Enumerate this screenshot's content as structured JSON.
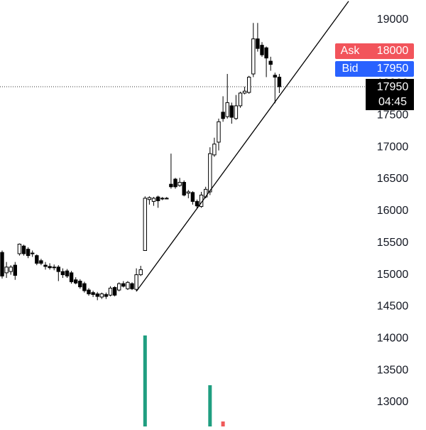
{
  "chart_data": {
    "type": "candlestick",
    "open": [
      15350,
      15030,
      15050,
      15150,
      15330,
      15450,
      15400,
      15340,
      15300,
      15220,
      15150,
      15130,
      15110,
      15120,
      15050,
      15060,
      15030,
      14920,
      14900,
      14860,
      14760,
      14720,
      14700,
      14650,
      14690,
      14680,
      14800,
      14760,
      14860,
      14780,
      14860,
      14770,
      15000,
      15380,
      16180,
      16150,
      16220,
      16190,
      16200,
      16420,
      16500,
      16400,
      16450,
      16280,
      16290,
      16150,
      16070,
      16220,
      16300,
      16880,
      17080,
      17550,
      17480,
      17650,
      17450,
      17650,
      17850,
      17860,
      18150,
      18700,
      18600,
      18560,
      18350,
      18130,
      18100
    ],
    "high": [
      15380,
      15200,
      15150,
      15200,
      15490,
      15470,
      15430,
      15380,
      15320,
      15250,
      15200,
      15180,
      15160,
      15150,
      15100,
      15090,
      15060,
      14960,
      14930,
      14890,
      14790,
      14750,
      14730,
      14720,
      14720,
      14820,
      14820,
      14880,
      14900,
      14900,
      14880,
      15100,
      15140,
      16230,
      16230,
      16220,
      16240,
      16220,
      16220,
      16900,
      16520,
      16520,
      16480,
      16330,
      16310,
      16180,
      16300,
      16380,
      17000,
      17150,
      17450,
      17800,
      18150,
      17700,
      17820,
      17870,
      17950,
      18120,
      18950,
      18950,
      18650,
      18580,
      18420,
      18170,
      18150
    ],
    "low": [
      14940,
      14950,
      15000,
      14920,
      15300,
      15300,
      15260,
      15280,
      15150,
      15150,
      15080,
      15080,
      15070,
      14900,
      14950,
      14950,
      14860,
      14850,
      14780,
      14720,
      14670,
      14650,
      14600,
      14620,
      14620,
      14660,
      14660,
      14740,
      14800,
      14760,
      14760,
      14740,
      14980,
      15380,
      16100,
      16080,
      16050,
      16170,
      16190,
      16350,
      16350,
      16380,
      16230,
      16200,
      16100,
      16030,
      16050,
      16200,
      16250,
      16850,
      16950,
      17400,
      17450,
      17370,
      17430,
      17620,
      17830,
      17840,
      18100,
      18500,
      18420,
      18100,
      18200,
      17690,
      17850
    ],
    "close": [
      14980,
      15120,
      15120,
      14990,
      15480,
      15330,
      15300,
      15330,
      15180,
      15180,
      15130,
      15110,
      15120,
      15050,
      15000,
      14980,
      14890,
      14870,
      14810,
      14750,
      14700,
      14690,
      14660,
      14700,
      14660,
      14790,
      14680,
      14860,
      14820,
      14880,
      14780,
      15000,
      15080,
      16200,
      16210,
      16200,
      16160,
      16200,
      16200,
      16380,
      16380,
      16450,
      16250,
      16300,
      16150,
      16080,
      16250,
      16340,
      16900,
      17050,
      17400,
      17450,
      17700,
      17470,
      17650,
      17850,
      17880,
      18100,
      18700,
      18550,
      18450,
      18400,
      18300,
      18100,
      17950
    ],
    "volume": [
      null,
      null,
      null,
      null,
      null,
      null,
      null,
      null,
      null,
      null,
      null,
      null,
      null,
      null,
      null,
      null,
      null,
      null,
      null,
      null,
      null,
      null,
      null,
      null,
      null,
      null,
      null,
      null,
      null,
      null,
      null,
      null,
      null,
      128,
      null,
      null,
      null,
      null,
      null,
      null,
      null,
      null,
      null,
      null,
      null,
      null,
      null,
      null,
      58,
      null,
      null,
      7,
      null,
      null,
      null,
      null,
      null,
      null,
      null,
      null,
      null,
      null,
      null,
      null,
      null
    ],
    "up_color": "#ffffff",
    "down_color": "#000000",
    "wick_color": "#000000",
    "volume_up_color": "#1f9e80",
    "volume_down_color": "#f05a5a",
    "ylim": [
      12620,
      19310
    ],
    "yticks": [
      13000,
      13500,
      14000,
      14500,
      15000,
      15500,
      16000,
      16500,
      17000,
      17500,
      18000,
      18500,
      19000
    ],
    "trendline": {
      "start": [
        31,
        14740
      ],
      "end": [
        80,
        19290
      ]
    },
    "ask": {
      "label": "Ask",
      "value": 18000,
      "color": "#f2545b"
    },
    "bid": {
      "label": "Bid",
      "value": 17950,
      "color": "#2962ff"
    },
    "last_price": 17950,
    "countdown": "04:45"
  }
}
